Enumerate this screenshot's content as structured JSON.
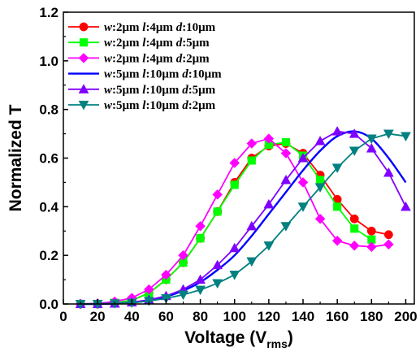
{
  "chart_data": {
    "type": "line",
    "xlabel": "Voltage (V",
    "xlabel_sub": "rms",
    "xlabel_close": ")",
    "ylabel": "Normalized T",
    "xlim": [
      0,
      205
    ],
    "ylim": [
      0,
      1.2
    ],
    "xticks": [
      "0",
      "20",
      "40",
      "60",
      "80",
      "100",
      "120",
      "140",
      "160",
      "180",
      "200"
    ],
    "yticks": [
      "0.0",
      "0.2",
      "0.4",
      "0.6",
      "0.8",
      "1.0",
      "1.2"
    ],
    "legend_position": "top-left",
    "series": [
      {
        "name": "w:2μm l:4μm d:10μm",
        "color": "#ff0000",
        "marker": "circle",
        "smooth": false,
        "x": [
          10,
          20,
          30,
          40,
          50,
          60,
          70,
          80,
          90,
          100,
          110,
          120,
          130,
          140,
          150,
          160,
          170,
          180,
          190
        ],
        "y": [
          0.0,
          0.0,
          0.005,
          0.015,
          0.045,
          0.1,
          0.17,
          0.27,
          0.38,
          0.5,
          0.6,
          0.65,
          0.66,
          0.62,
          0.53,
          0.43,
          0.35,
          0.3,
          0.285
        ]
      },
      {
        "name": "w:2μm l:4μm d:5μm",
        "color": "#00ff00",
        "marker": "square",
        "smooth": false,
        "x": [
          10,
          20,
          30,
          40,
          50,
          60,
          70,
          80,
          90,
          100,
          110,
          120,
          130,
          140,
          150,
          160,
          170,
          180
        ],
        "y": [
          0.0,
          0.0,
          0.005,
          0.015,
          0.045,
          0.1,
          0.17,
          0.27,
          0.38,
          0.49,
          0.59,
          0.655,
          0.665,
          0.61,
          0.51,
          0.4,
          0.31,
          0.265
        ]
      },
      {
        "name": "w:2μm l:4μm d:2μm",
        "color": "#ff00ff",
        "marker": "diamond",
        "smooth": false,
        "x": [
          10,
          20,
          30,
          40,
          50,
          60,
          70,
          80,
          90,
          100,
          110,
          120,
          130,
          140,
          150,
          160,
          170,
          180,
          190
        ],
        "y": [
          0.0,
          0.002,
          0.01,
          0.025,
          0.06,
          0.12,
          0.2,
          0.32,
          0.45,
          0.58,
          0.66,
          0.68,
          0.62,
          0.5,
          0.35,
          0.26,
          0.24,
          0.235,
          0.245
        ]
      },
      {
        "name": "w:5μm l:10μm d:10μm",
        "color": "#0000ff",
        "marker": "none",
        "smooth": true,
        "x": [
          10,
          20,
          30,
          40,
          50,
          60,
          70,
          80,
          90,
          100,
          110,
          120,
          130,
          140,
          150,
          160,
          170,
          180,
          190,
          200
        ],
        "y": [
          0.0,
          0.0,
          0.002,
          0.006,
          0.015,
          0.03,
          0.055,
          0.09,
          0.14,
          0.2,
          0.28,
          0.37,
          0.46,
          0.55,
          0.63,
          0.69,
          0.71,
          0.68,
          0.6,
          0.5
        ]
      },
      {
        "name": "w:5μm l:10μm d:5μm",
        "color": "#8000ff",
        "marker": "triangle-up",
        "smooth": false,
        "x": [
          10,
          20,
          30,
          40,
          50,
          60,
          70,
          80,
          90,
          100,
          110,
          120,
          130,
          140,
          150,
          160,
          170,
          180,
          190,
          200
        ],
        "y": [
          0.0,
          0.0,
          0.002,
          0.007,
          0.017,
          0.033,
          0.06,
          0.1,
          0.16,
          0.23,
          0.32,
          0.41,
          0.51,
          0.6,
          0.67,
          0.71,
          0.7,
          0.64,
          0.54,
          0.4
        ]
      },
      {
        "name": "w:5μm l:10μm d:2μm",
        "color": "#008080",
        "marker": "triangle-down",
        "smooth": false,
        "x": [
          10,
          20,
          30,
          40,
          50,
          60,
          70,
          80,
          90,
          100,
          110,
          120,
          130,
          140,
          150,
          160,
          170,
          180,
          190,
          200
        ],
        "y": [
          0.0,
          0.0,
          0.002,
          0.005,
          0.012,
          0.023,
          0.038,
          0.058,
          0.085,
          0.12,
          0.175,
          0.24,
          0.32,
          0.4,
          0.48,
          0.56,
          0.63,
          0.68,
          0.7,
          0.69
        ]
      }
    ]
  }
}
